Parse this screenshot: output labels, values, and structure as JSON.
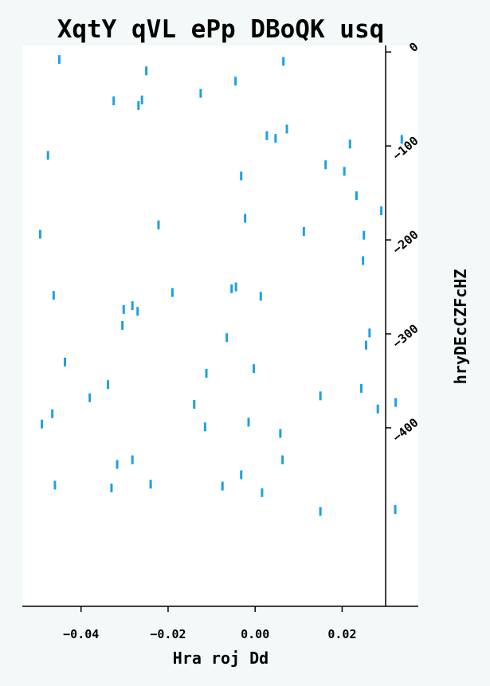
{
  "chart_data": {
    "type": "scatter",
    "title": "XqtY qVL ePp  DBoQK usq",
    "xlabel": "Hra roj Dd",
    "ylabel": "hryDEcCZFcHZ",
    "xlim": [
      -0.0535,
      0.0375
    ],
    "ylim": [
      -590,
      7
    ],
    "y_axis_position": "right",
    "y_axis_at_x": 0.03,
    "grid": false,
    "legend": "none",
    "marker": "vertical-line",
    "point_color": "#1ca0e4",
    "x_ticks": [
      {
        "value": -0.04,
        "label": "−0.04"
      },
      {
        "value": -0.02,
        "label": "−0.02"
      },
      {
        "value": 0.0,
        "label": "0.00"
      },
      {
        "value": 0.02,
        "label": "0.02"
      }
    ],
    "y_ticks": [
      {
        "value": 0,
        "label": "0"
      },
      {
        "value": -100,
        "label": "−100"
      },
      {
        "value": -200,
        "label": "−200"
      },
      {
        "value": -300,
        "label": "−300"
      },
      {
        "value": -400,
        "label": "−400"
      }
    ],
    "points": [
      {
        "x": -0.045,
        "y": -8
      },
      {
        "x": 0.0065,
        "y": -10
      },
      {
        "x": -0.025,
        "y": -20
      },
      {
        "x": -0.0045,
        "y": -31
      },
      {
        "x": -0.0125,
        "y": -44
      },
      {
        "x": -0.0325,
        "y": -52
      },
      {
        "x": -0.026,
        "y": -51
      },
      {
        "x": -0.0268,
        "y": -57
      },
      {
        "x": 0.0073,
        "y": -82
      },
      {
        "x": 0.0027,
        "y": -89
      },
      {
        "x": 0.0047,
        "y": -92
      },
      {
        "x": 0.0337,
        "y": -93
      },
      {
        "x": 0.0218,
        "y": -98
      },
      {
        "x": -0.0476,
        "y": -110
      },
      {
        "x": 0.0162,
        "y": -120
      },
      {
        "x": 0.0205,
        "y": -127
      },
      {
        "x": -0.0032,
        "y": -132
      },
      {
        "x": 0.0233,
        "y": -153
      },
      {
        "x": 0.029,
        "y": -169
      },
      {
        "x": -0.0023,
        "y": -177
      },
      {
        "x": -0.0222,
        "y": -184
      },
      {
        "x": 0.0112,
        "y": -191
      },
      {
        "x": -0.0494,
        "y": -194
      },
      {
        "x": 0.025,
        "y": -195
      },
      {
        "x": 0.0248,
        "y": -222
      },
      {
        "x": -0.0054,
        "y": -252
      },
      {
        "x": -0.0044,
        "y": -250
      },
      {
        "x": -0.019,
        "y": -256
      },
      {
        "x": -0.0463,
        "y": -259
      },
      {
        "x": 0.0013,
        "y": -260
      },
      {
        "x": -0.0282,
        "y": -270
      },
      {
        "x": -0.0302,
        "y": -274
      },
      {
        "x": -0.027,
        "y": -276
      },
      {
        "x": -0.0305,
        "y": -291
      },
      {
        "x": 0.0263,
        "y": -299
      },
      {
        "x": -0.0065,
        "y": -304
      },
      {
        "x": 0.0255,
        "y": -312
      },
      {
        "x": -0.0437,
        "y": -330
      },
      {
        "x": -0.0003,
        "y": -337
      },
      {
        "x": -0.0112,
        "y": -342
      },
      {
        "x": -0.0338,
        "y": -354
      },
      {
        "x": 0.0244,
        "y": -358
      },
      {
        "x": 0.015,
        "y": -366
      },
      {
        "x": -0.038,
        "y": -368
      },
      {
        "x": 0.0323,
        "y": -373
      },
      {
        "x": -0.014,
        "y": -375
      },
      {
        "x": 0.0282,
        "y": -380
      },
      {
        "x": -0.0466,
        "y": -385
      },
      {
        "x": -0.0015,
        "y": -394
      },
      {
        "x": -0.049,
        "y": -396
      },
      {
        "x": -0.0115,
        "y": -399
      },
      {
        "x": 0.0058,
        "y": -406
      },
      {
        "x": 0.0063,
        "y": -434
      },
      {
        "x": -0.0282,
        "y": -434
      },
      {
        "x": -0.0317,
        "y": -439
      },
      {
        "x": -0.0032,
        "y": -450
      },
      {
        "x": -0.046,
        "y": -461
      },
      {
        "x": -0.024,
        "y": -460
      },
      {
        "x": -0.033,
        "y": -464
      },
      {
        "x": -0.0075,
        "y": -462
      },
      {
        "x": 0.0016,
        "y": -469
      },
      {
        "x": 0.0322,
        "y": -487
      },
      {
        "x": 0.015,
        "y": -489
      }
    ]
  }
}
